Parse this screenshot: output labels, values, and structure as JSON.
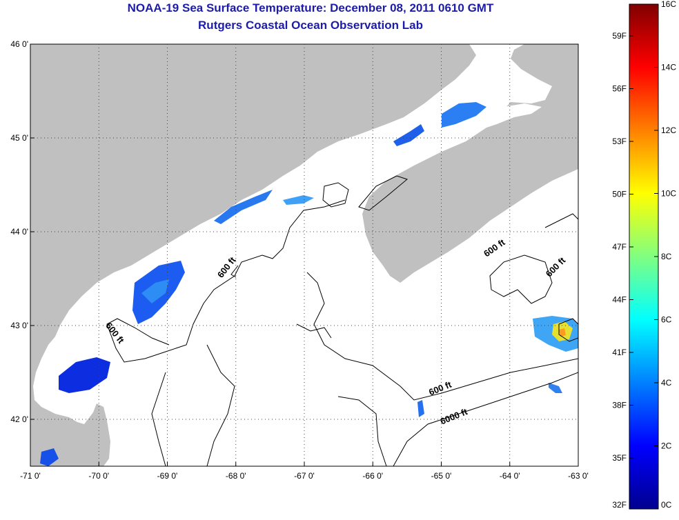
{
  "header": {
    "title": "NOAA-19 Sea Surface Temperature:  December 08, 2011 0610 GMT",
    "subtitle": "Rutgers Coastal Ocean Observation Lab"
  },
  "map": {
    "lon_range": [
      -71,
      -63
    ],
    "lat_range": [
      41.5,
      46
    ],
    "lon_ticks": [
      "-71 0'",
      "-70 0'",
      "-69 0'",
      "-68 0'",
      "-67 0'",
      "-66 0'",
      "-65 0'",
      "-64 0'",
      "-63 0'"
    ],
    "lat_ticks": [
      "46 0'",
      "45 0'",
      "44 0'",
      "43 0'",
      "42 0'"
    ],
    "land_color": "#c0c0c0",
    "water_color": "#ffffff",
    "contour_labels": [
      {
        "text": "600 ft",
        "lon": -68.1,
        "lat": 43.6,
        "angle": -52
      },
      {
        "text": "600 ft",
        "lon": -69.8,
        "lat": 42.9,
        "angle": 52
      },
      {
        "text": "600 ft",
        "lon": -64.2,
        "lat": 43.8,
        "angle": -35
      },
      {
        "text": "600 ft",
        "lon": -63.3,
        "lat": 43.6,
        "angle": -45
      },
      {
        "text": "600 ft",
        "lon": -65.0,
        "lat": 42.3,
        "angle": -22
      },
      {
        "text": "6000 ft",
        "lon": -64.8,
        "lat": 42.0,
        "angle": -22
      }
    ]
  },
  "colorbar": {
    "colors": [
      "#00008f",
      "#0000ff",
      "#0080ff",
      "#00ffff",
      "#80ff80",
      "#ffff00",
      "#ff8000",
      "#ff0000",
      "#800000"
    ],
    "celsius_labels": [
      "16C",
      "14C",
      "12C",
      "10C",
      "8C",
      "6C",
      "4C",
      "2C",
      "0C"
    ],
    "fahrenheit_labels": [
      "59F",
      "56F",
      "53F",
      "50F",
      "47F",
      "44F",
      "41F",
      "38F",
      "35F",
      "32F"
    ]
  }
}
